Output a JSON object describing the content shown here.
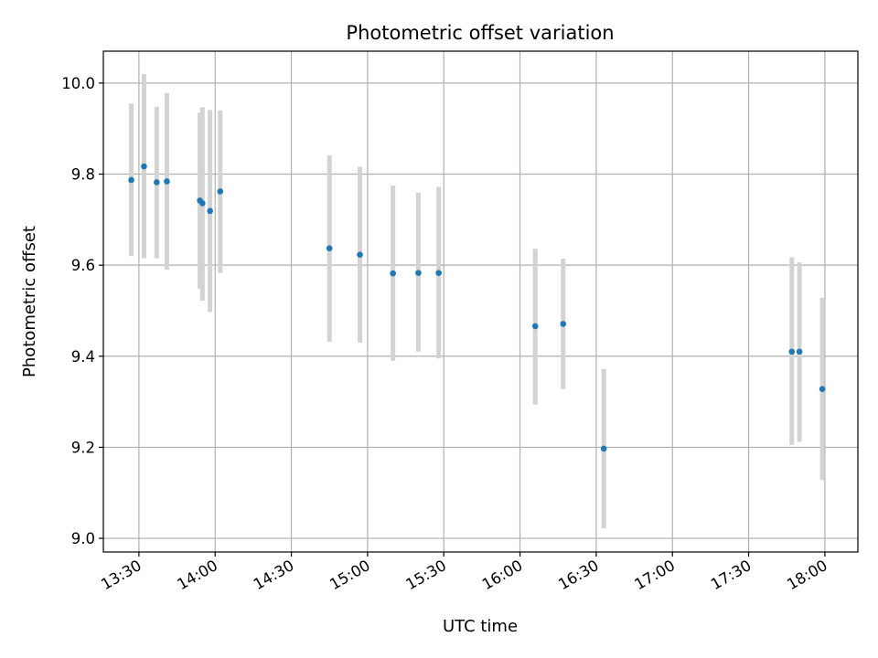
{
  "chart_data": {
    "type": "scatter",
    "title": "Photometric offset variation",
    "xlabel": "UTC time",
    "ylabel": "Photometric offset",
    "x_ticks": [
      "13:30",
      "14:00",
      "14:30",
      "15:00",
      "15:30",
      "16:00",
      "16:30",
      "17:00",
      "17:30",
      "18:00"
    ],
    "y_ticks": [
      "9.0",
      "9.2",
      "9.4",
      "9.6",
      "9.8",
      "10.0"
    ],
    "xlim": [
      "13:16",
      "18:13"
    ],
    "ylim": [
      8.97,
      10.07
    ],
    "grid": true,
    "point_color": "#1f77b4",
    "errorbar_color": "#d3d3d3",
    "points": [
      {
        "x": "13:27",
        "y": 9.787,
        "err_low": 9.62,
        "err_high": 9.955
      },
      {
        "x": "13:32",
        "y": 9.817,
        "err_low": 9.615,
        "err_high": 10.02
      },
      {
        "x": "13:37",
        "y": 9.782,
        "err_low": 9.615,
        "err_high": 9.948
      },
      {
        "x": "13:41",
        "y": 9.784,
        "err_low": 9.59,
        "err_high": 9.978
      },
      {
        "x": "13:54",
        "y": 9.742,
        "err_low": 9.548,
        "err_high": 9.935
      },
      {
        "x": "13:55",
        "y": 9.736,
        "err_low": 9.522,
        "err_high": 9.947
      },
      {
        "x": "13:58",
        "y": 9.719,
        "err_low": 9.497,
        "err_high": 9.941
      },
      {
        "x": "14:02",
        "y": 9.762,
        "err_low": 9.583,
        "err_high": 9.94
      },
      {
        "x": "14:45",
        "y": 9.637,
        "err_low": 9.432,
        "err_high": 9.841
      },
      {
        "x": "14:57",
        "y": 9.623,
        "err_low": 9.43,
        "err_high": 9.816
      },
      {
        "x": "15:10",
        "y": 9.582,
        "err_low": 9.39,
        "err_high": 9.775
      },
      {
        "x": "15:20",
        "y": 9.583,
        "err_low": 9.41,
        "err_high": 9.759
      },
      {
        "x": "15:28",
        "y": 9.583,
        "err_low": 9.395,
        "err_high": 9.772
      },
      {
        "x": "16:06",
        "y": 9.466,
        "err_low": 9.294,
        "err_high": 9.636
      },
      {
        "x": "16:17",
        "y": 9.471,
        "err_low": 9.328,
        "err_high": 9.614
      },
      {
        "x": "16:33",
        "y": 9.197,
        "err_low": 9.022,
        "err_high": 9.372
      },
      {
        "x": "17:47",
        "y": 9.41,
        "err_low": 9.205,
        "err_high": 9.617
      },
      {
        "x": "17:50",
        "y": 9.41,
        "err_low": 9.212,
        "err_high": 9.606
      },
      {
        "x": "17:59",
        "y": 9.328,
        "err_low": 9.128,
        "err_high": 9.528
      }
    ]
  }
}
